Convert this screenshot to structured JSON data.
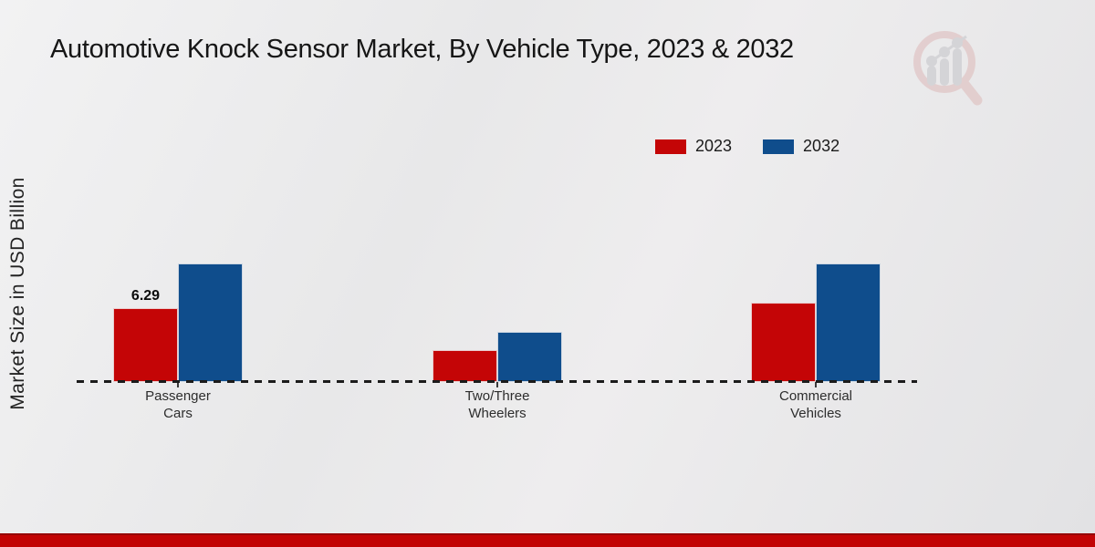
{
  "chart_data": {
    "type": "bar",
    "title": "Automotive Knock Sensor Market, By Vehicle Type, 2023 & 2032",
    "xlabel": "",
    "ylabel": "Market Size in USD Billion",
    "categories": [
      "Passenger Cars",
      "Two/Three Wheelers",
      "Commercial Vehicles"
    ],
    "category_label_lines": [
      [
        "Passenger",
        "Cars"
      ],
      [
        "Two/Three",
        "Wheelers"
      ],
      [
        "Commercial",
        "Vehicles"
      ]
    ],
    "series": [
      {
        "name": "2023",
        "color": "#c40506",
        "values": [
          6.29,
          2.72,
          6.76
        ]
      },
      {
        "name": "2032",
        "color": "#0f4d8c",
        "values": [
          10.09,
          4.27,
          10.09
        ]
      }
    ],
    "data_labels": [
      {
        "series": "2023",
        "category": "Passenger Cars",
        "text": "6.29"
      }
    ],
    "ylim": [
      0,
      10.5
    ],
    "grid": false,
    "legend_position": "upper-right",
    "baseline_style": "dashed"
  },
  "legend": {
    "items": [
      {
        "label": "2023",
        "color": "#c40506"
      },
      {
        "label": "2032",
        "color": "#0f4d8c"
      }
    ]
  },
  "watermark": {
    "icon": "magnifier-bar-chart-logo"
  },
  "footer": {
    "band_color": "#c20404"
  }
}
